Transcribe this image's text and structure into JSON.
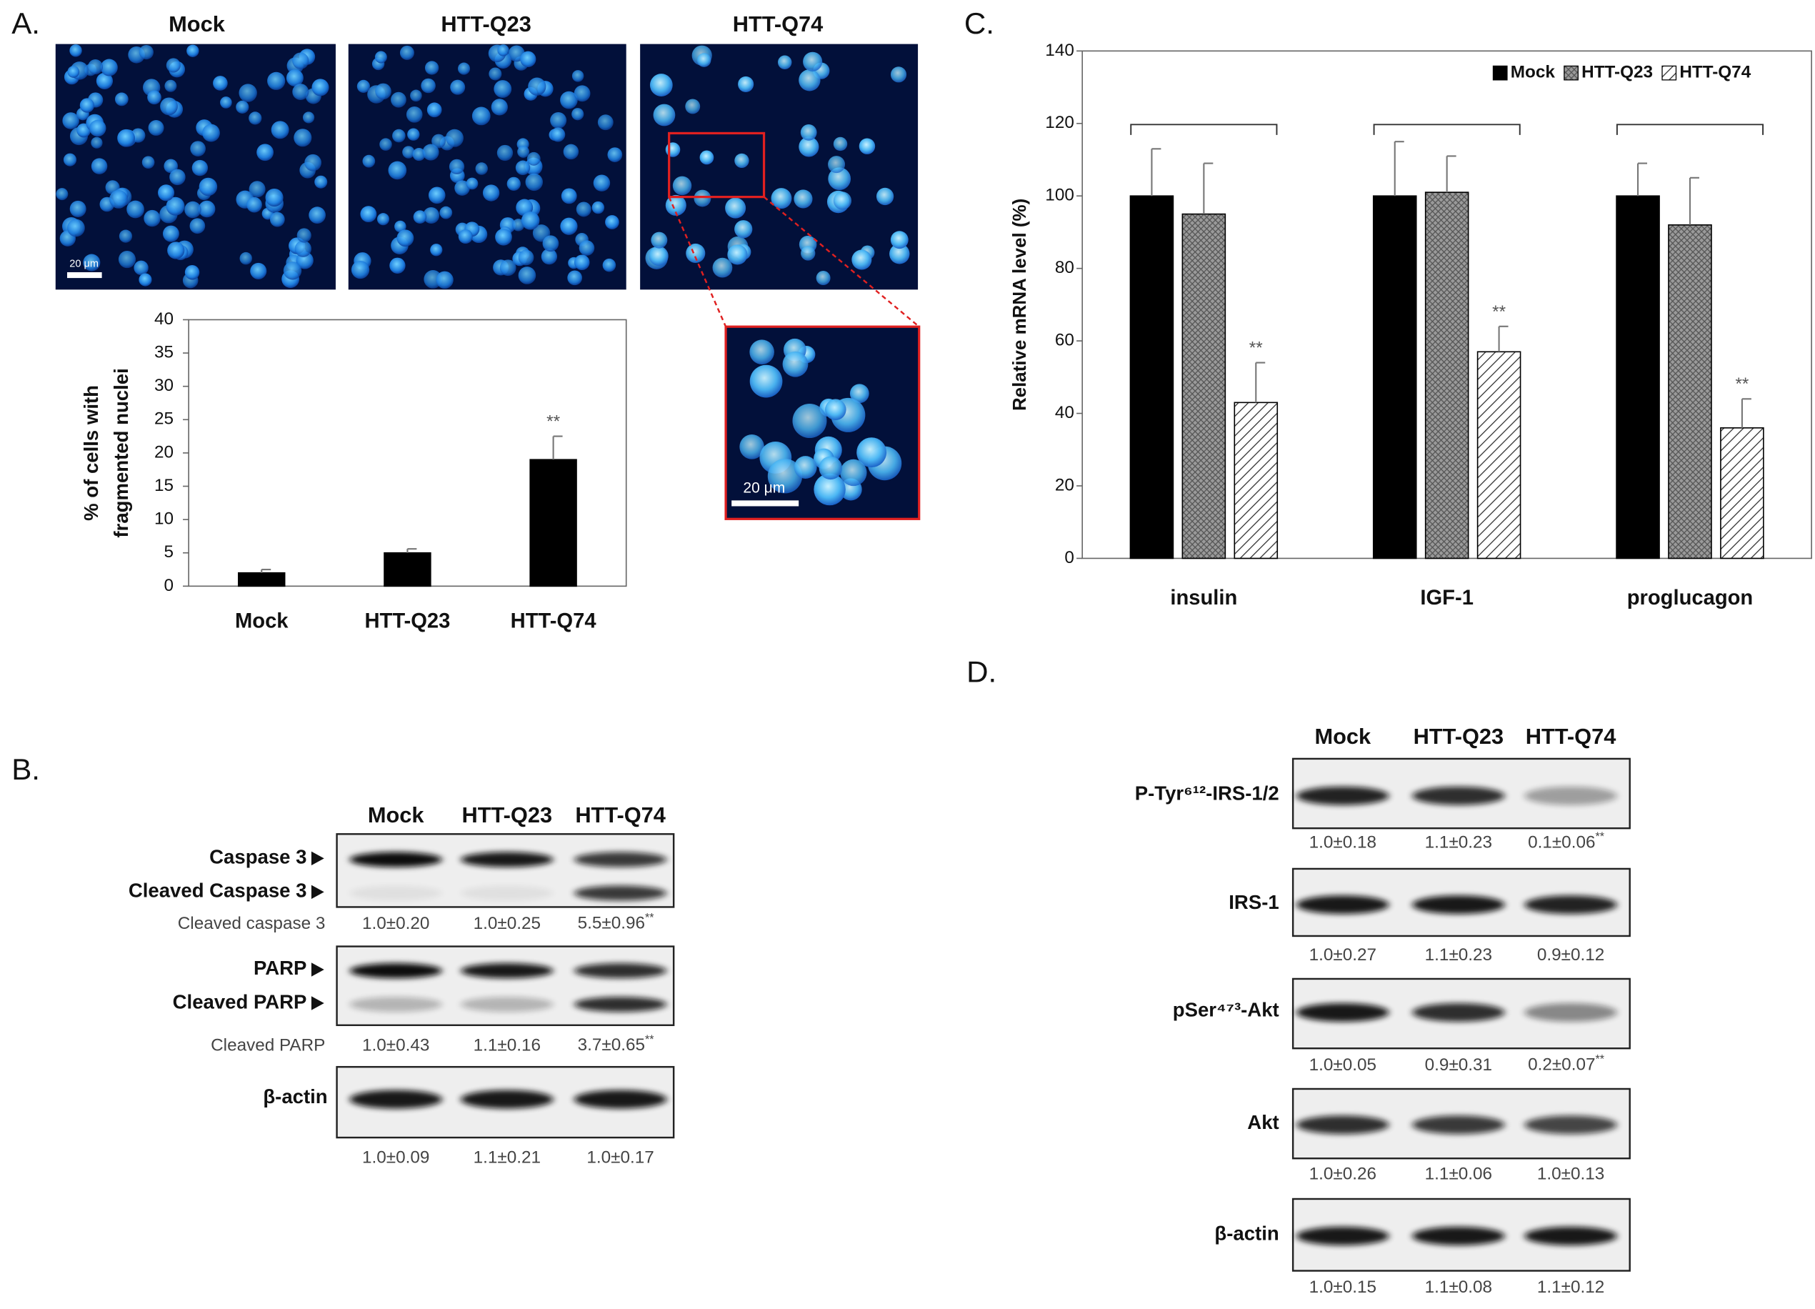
{
  "panels": {
    "a": {
      "label": "A.",
      "images": [
        {
          "title": "Mock",
          "scale_bar": "20 μm"
        },
        {
          "title": "HTT-Q23"
        },
        {
          "title": "HTT-Q74"
        }
      ],
      "inset_scale_bar": "20 μm"
    },
    "b": {
      "label": "B.",
      "columns": [
        "Mock",
        "HTT-Q23",
        "HTT-Q74"
      ],
      "blots": [
        {
          "rows": [
            "Caspase 3",
            "Cleaved Caspase 3"
          ],
          "quant_label": "Cleaved caspase 3",
          "quant": [
            "1.0±0.20",
            "1.0±0.25",
            {
              "text": "5.5±0.96",
              "mark": "**"
            }
          ]
        },
        {
          "rows": [
            "PARP",
            "Cleaved PARP"
          ],
          "quant_label": "Cleaved PARP",
          "quant": [
            "1.0±0.43",
            "1.1±0.16",
            {
              "text": "3.7±0.65",
              "mark": "**"
            }
          ]
        },
        {
          "rows": [
            "β-actin"
          ],
          "quant": [
            "1.0±0.09",
            "1.1±0.21",
            "1.0±0.17"
          ]
        }
      ]
    },
    "c": {
      "label": "C."
    },
    "d": {
      "label": "D.",
      "columns": [
        "Mock",
        "HTT-Q23",
        "HTT-Q74"
      ],
      "blots": [
        {
          "rows": [
            "P-Tyr⁶¹²-IRS-1/2"
          ],
          "quant": [
            "1.0±0.18",
            "1.1±0.23",
            {
              "text": "0.1±0.06",
              "mark": "**"
            }
          ]
        },
        {
          "rows": [
            "IRS-1"
          ],
          "quant": [
            "1.0±0.27",
            "1.1±0.23",
            "0.9±0.12"
          ]
        },
        {
          "rows": [
            "pSer⁴⁷³-Akt"
          ],
          "quant": [
            "1.0±0.05",
            "0.9±0.31",
            {
              "text": "0.2±0.07",
              "mark": "**"
            }
          ]
        },
        {
          "rows": [
            "Akt"
          ],
          "quant": [
            "1.0±0.26",
            "1.1±0.06",
            "1.0±0.13"
          ]
        },
        {
          "rows": [
            "β-actin"
          ],
          "quant": [
            "1.0±0.15",
            "1.1±0.08",
            "1.1±0.12"
          ]
        }
      ]
    }
  },
  "chart_data": [
    {
      "type": "bar",
      "ylabel": [
        "% of cells with",
        "fragmented nuclei"
      ],
      "categories": [
        "Mock",
        "HTT-Q23",
        "HTT-Q74"
      ],
      "values": [
        2,
        5,
        19
      ],
      "errors": [
        0.5,
        0.6,
        3.5
      ],
      "significance": [
        null,
        null,
        "**"
      ],
      "color": "#000000",
      "ylim": [
        0,
        40
      ],
      "yticks": [
        0,
        5,
        10,
        15,
        20,
        25,
        30,
        35,
        40
      ]
    },
    {
      "type": "bar",
      "ylabel": "Relative mRNA level (%)",
      "categories": [
        "insulin",
        "IGF-1",
        "proglucagon"
      ],
      "series": [
        {
          "name": "Mock",
          "color": "#000000",
          "values": [
            100,
            100,
            100
          ],
          "errors": [
            13,
            15,
            9
          ]
        },
        {
          "name": "HTT-Q23",
          "color": "#8c8c8c",
          "hatch": "cross",
          "values": [
            95,
            101,
            92
          ],
          "errors": [
            14,
            10,
            13
          ]
        },
        {
          "name": "HTT-Q74",
          "color": "#ffffff",
          "hatch": "diagonal",
          "values": [
            43,
            57,
            36
          ],
          "errors": [
            11,
            7,
            8
          ],
          "significance": [
            "**",
            "**",
            "**"
          ]
        }
      ],
      "ylim": [
        0,
        140
      ],
      "yticks": [
        0,
        20,
        40,
        60,
        80,
        100,
        120,
        140
      ],
      "legend": "top-right"
    }
  ]
}
